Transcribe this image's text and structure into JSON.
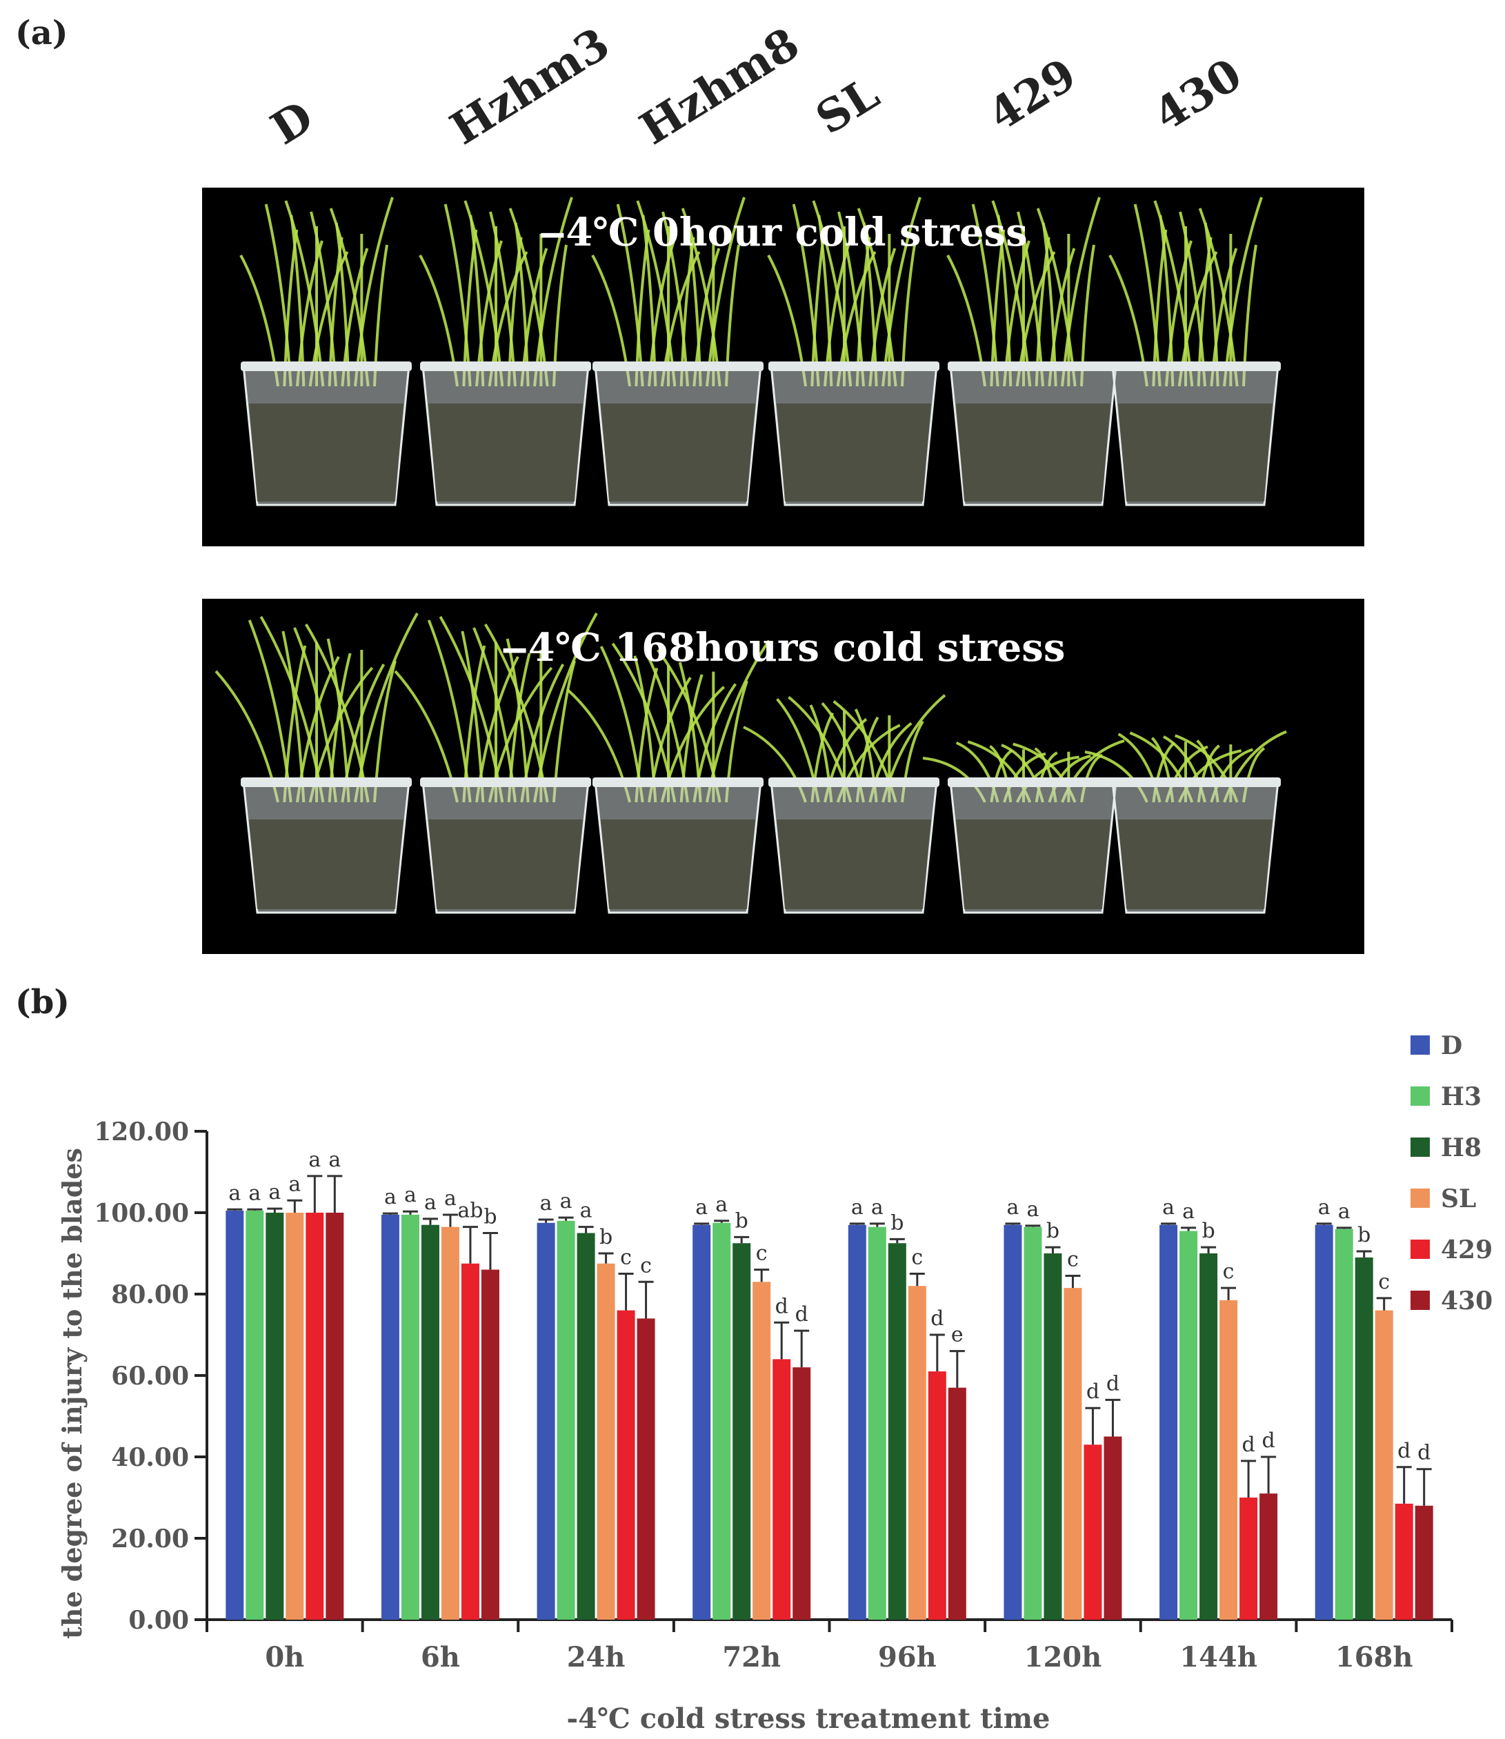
{
  "panel_a": {
    "label": "(a)",
    "line_labels": [
      "D",
      "Hzhm3",
      "Hzhm8",
      "SL",
      "429",
      "430"
    ],
    "photos": [
      {
        "title": "‒4℃ 0hour cold stress",
        "state": "healthy"
      },
      {
        "title": "‒4℃ 168hours cold stress",
        "state": "stressed"
      }
    ],
    "colors": {
      "background": "#000000",
      "leaf": "#b6e04a",
      "cup": "#c9cfcf",
      "soil": "#4a4a3c"
    }
  },
  "panel_b": {
    "label": "(b)"
  },
  "chart_data": {
    "type": "bar",
    "xlabel": "-4℃ cold stress treatment time",
    "ylabel": "the degree of injury to the blades",
    "ylim": [
      0,
      120
    ],
    "yticks": [
      "0.00",
      "20.00",
      "40.00",
      "60.00",
      "80.00",
      "100.00",
      "120.00"
    ],
    "categories": [
      "0h",
      "6h",
      "24h",
      "72h",
      "96h",
      "120h",
      "144h",
      "168h"
    ],
    "legend_position": "top-right",
    "grid": false,
    "series": [
      {
        "name": "D",
        "color": "#3b56b5",
        "values": [
          100.5,
          99.5,
          97.5,
          97.0,
          97.0,
          97.0,
          97.0,
          97.0
        ],
        "errors": [
          0.3,
          0.3,
          0.8,
          0.3,
          0.3,
          0.3,
          0.3,
          0.3
        ],
        "letters": [
          "a",
          "a",
          "a",
          "a",
          "a",
          "a",
          "a",
          "a"
        ]
      },
      {
        "name": "H3",
        "color": "#5cc86a",
        "values": [
          100.5,
          99.5,
          98.0,
          97.5,
          96.5,
          96.5,
          95.5,
          96.0
        ],
        "errors": [
          0.3,
          0.8,
          0.8,
          0.5,
          0.8,
          0.3,
          0.8,
          0.3
        ],
        "letters": [
          "a",
          "a",
          "a",
          "a",
          "a",
          "a",
          "a",
          "a"
        ]
      },
      {
        "name": "H8",
        "color": "#1e5e2b",
        "values": [
          100.0,
          97.0,
          95.0,
          92.5,
          92.5,
          90.0,
          90.0,
          89.0
        ],
        "errors": [
          1.0,
          1.5,
          1.5,
          1.5,
          1.0,
          1.5,
          1.5,
          1.5
        ],
        "letters": [
          "a",
          "a",
          "a",
          "b",
          "b",
          "b",
          "b",
          "b"
        ]
      },
      {
        "name": "SL",
        "color": "#f0935a",
        "values": [
          100.0,
          96.5,
          87.5,
          83.0,
          82.0,
          81.5,
          78.5,
          76.0
        ],
        "errors": [
          3.0,
          3.0,
          2.5,
          3.0,
          3.0,
          3.0,
          3.0,
          3.0
        ],
        "letters": [
          "a",
          "a",
          "b",
          "c",
          "c",
          "c",
          "c",
          "c"
        ]
      },
      {
        "name": "429",
        "color": "#e8212b",
        "values": [
          100.0,
          87.5,
          76.0,
          64.0,
          61.0,
          43.0,
          30.0,
          28.5
        ],
        "errors": [
          9.0,
          9.0,
          9.0,
          9.0,
          9.0,
          9.0,
          9.0,
          9.0
        ],
        "letters": [
          "a",
          "ab",
          "c",
          "d",
          "d",
          "d",
          "d",
          "d"
        ]
      },
      {
        "name": "430",
        "color": "#a11d26",
        "values": [
          100.0,
          86.0,
          74.0,
          62.0,
          57.0,
          45.0,
          31.0,
          28.0
        ],
        "errors": [
          9.0,
          9.0,
          9.0,
          9.0,
          9.0,
          9.0,
          9.0,
          9.0
        ],
        "letters": [
          "a",
          "b",
          "c",
          "d",
          "e",
          "d",
          "d",
          "d"
        ]
      }
    ]
  }
}
